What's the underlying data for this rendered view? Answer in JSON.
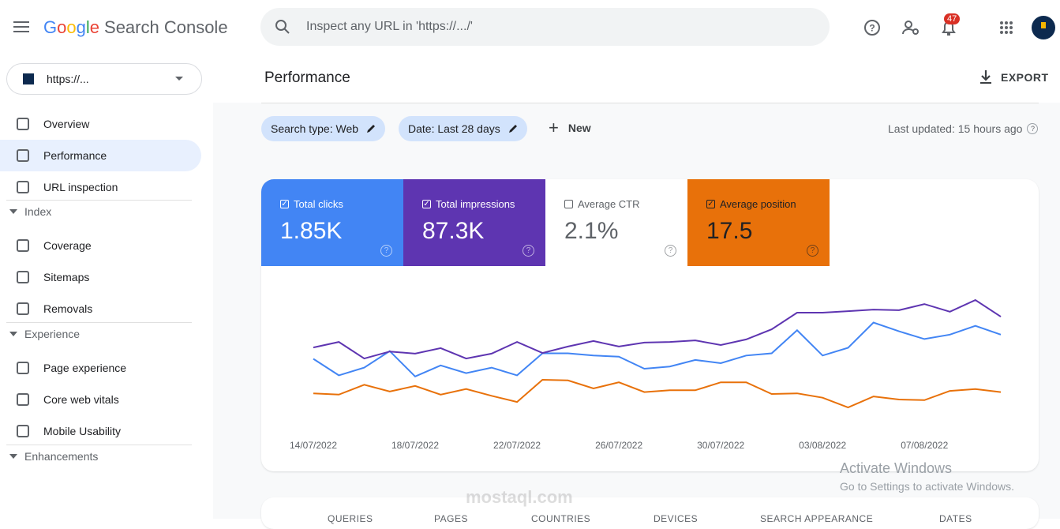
{
  "header": {
    "logo": "Google",
    "product": "Search Console",
    "search_placeholder": "Inspect any URL in 'https://.../'",
    "notifications": "47"
  },
  "property": "https://...",
  "nav": {
    "top": [
      "Overview",
      "Performance",
      "URL inspection"
    ],
    "sections": [
      {
        "title": "Index",
        "items": [
          "Coverage",
          "Sitemaps",
          "Removals"
        ]
      },
      {
        "title": "Experience",
        "items": [
          "Page experience",
          "Core web vitals",
          "Mobile Usability"
        ]
      },
      {
        "title": "Enhancements",
        "items": []
      }
    ]
  },
  "page": {
    "title": "Performance",
    "export": "EXPORT",
    "filters": [
      "Search type: Web",
      "Date: Last 28 days"
    ],
    "new": "New",
    "last_updated": "Last updated: 15 hours ago"
  },
  "metrics": [
    {
      "label": "Total clicks",
      "total": "1.85K",
      "checked": true,
      "color": "#4285f4"
    },
    {
      "label": "Total impressions",
      "total": "87.3K",
      "checked": true,
      "color": "#5e35b1"
    },
    {
      "label": "Average CTR",
      "total": "2.1%",
      "checked": false,
      "color": "#ffffff"
    },
    {
      "label": "Average position",
      "total": "17.5",
      "checked": true,
      "color": "#e8710a"
    }
  ],
  "chart_data": {
    "type": "line",
    "categories": [
      "14/07/2022",
      null,
      null,
      null,
      "18/07/2022",
      null,
      null,
      null,
      "22/07/2022",
      null,
      null,
      null,
      "26/07/2022",
      null,
      null,
      null,
      "30/07/2022",
      null,
      null,
      null,
      "03/08/2022",
      null,
      null,
      null,
      "07/08/2022",
      null,
      null,
      null
    ],
    "series": [
      {
        "color": "#4285f4",
        "ylim": [
          0,
          140
        ],
        "values": [
          65,
          50,
          57,
          72,
          49,
          59,
          52,
          57,
          50,
          70,
          70,
          68,
          67,
          56,
          58,
          64,
          61,
          68,
          70,
          91,
          68,
          75,
          98,
          90,
          83,
          87,
          95,
          87
        ]
      },
      {
        "color": "#5e35b1",
        "ylim": [
          0,
          5000
        ],
        "values": [
          2690,
          2870,
          2330,
          2560,
          2490,
          2670,
          2330,
          2490,
          2870,
          2510,
          2720,
          2900,
          2720,
          2850,
          2870,
          2920,
          2770,
          2950,
          3280,
          3820,
          3820,
          3870,
          3920,
          3900,
          4100,
          3850,
          4230,
          3690
        ]
      },
      {
        "color": "#e8710a",
        "ylim": [
          25,
          0
        ],
        "values": [
          19.0,
          19.2,
          17.6,
          18.7,
          17.8,
          19.2,
          18.3,
          19.4,
          20.4,
          16.8,
          16.9,
          18.2,
          17.2,
          18.8,
          18.5,
          18.5,
          17.2,
          17.2,
          19.1,
          19.0,
          19.7,
          21.3,
          19.5,
          20.0,
          20.1,
          18.6,
          18.3,
          18.8
        ]
      }
    ]
  },
  "tabs": [
    "QUERIES",
    "PAGES",
    "COUNTRIES",
    "DEVICES",
    "SEARCH APPEARANCE",
    "DATES"
  ],
  "watermark": {
    "title": "Activate Windows",
    "subtitle": "Go to Settings to activate Windows.",
    "site": "mostaql.com"
  }
}
